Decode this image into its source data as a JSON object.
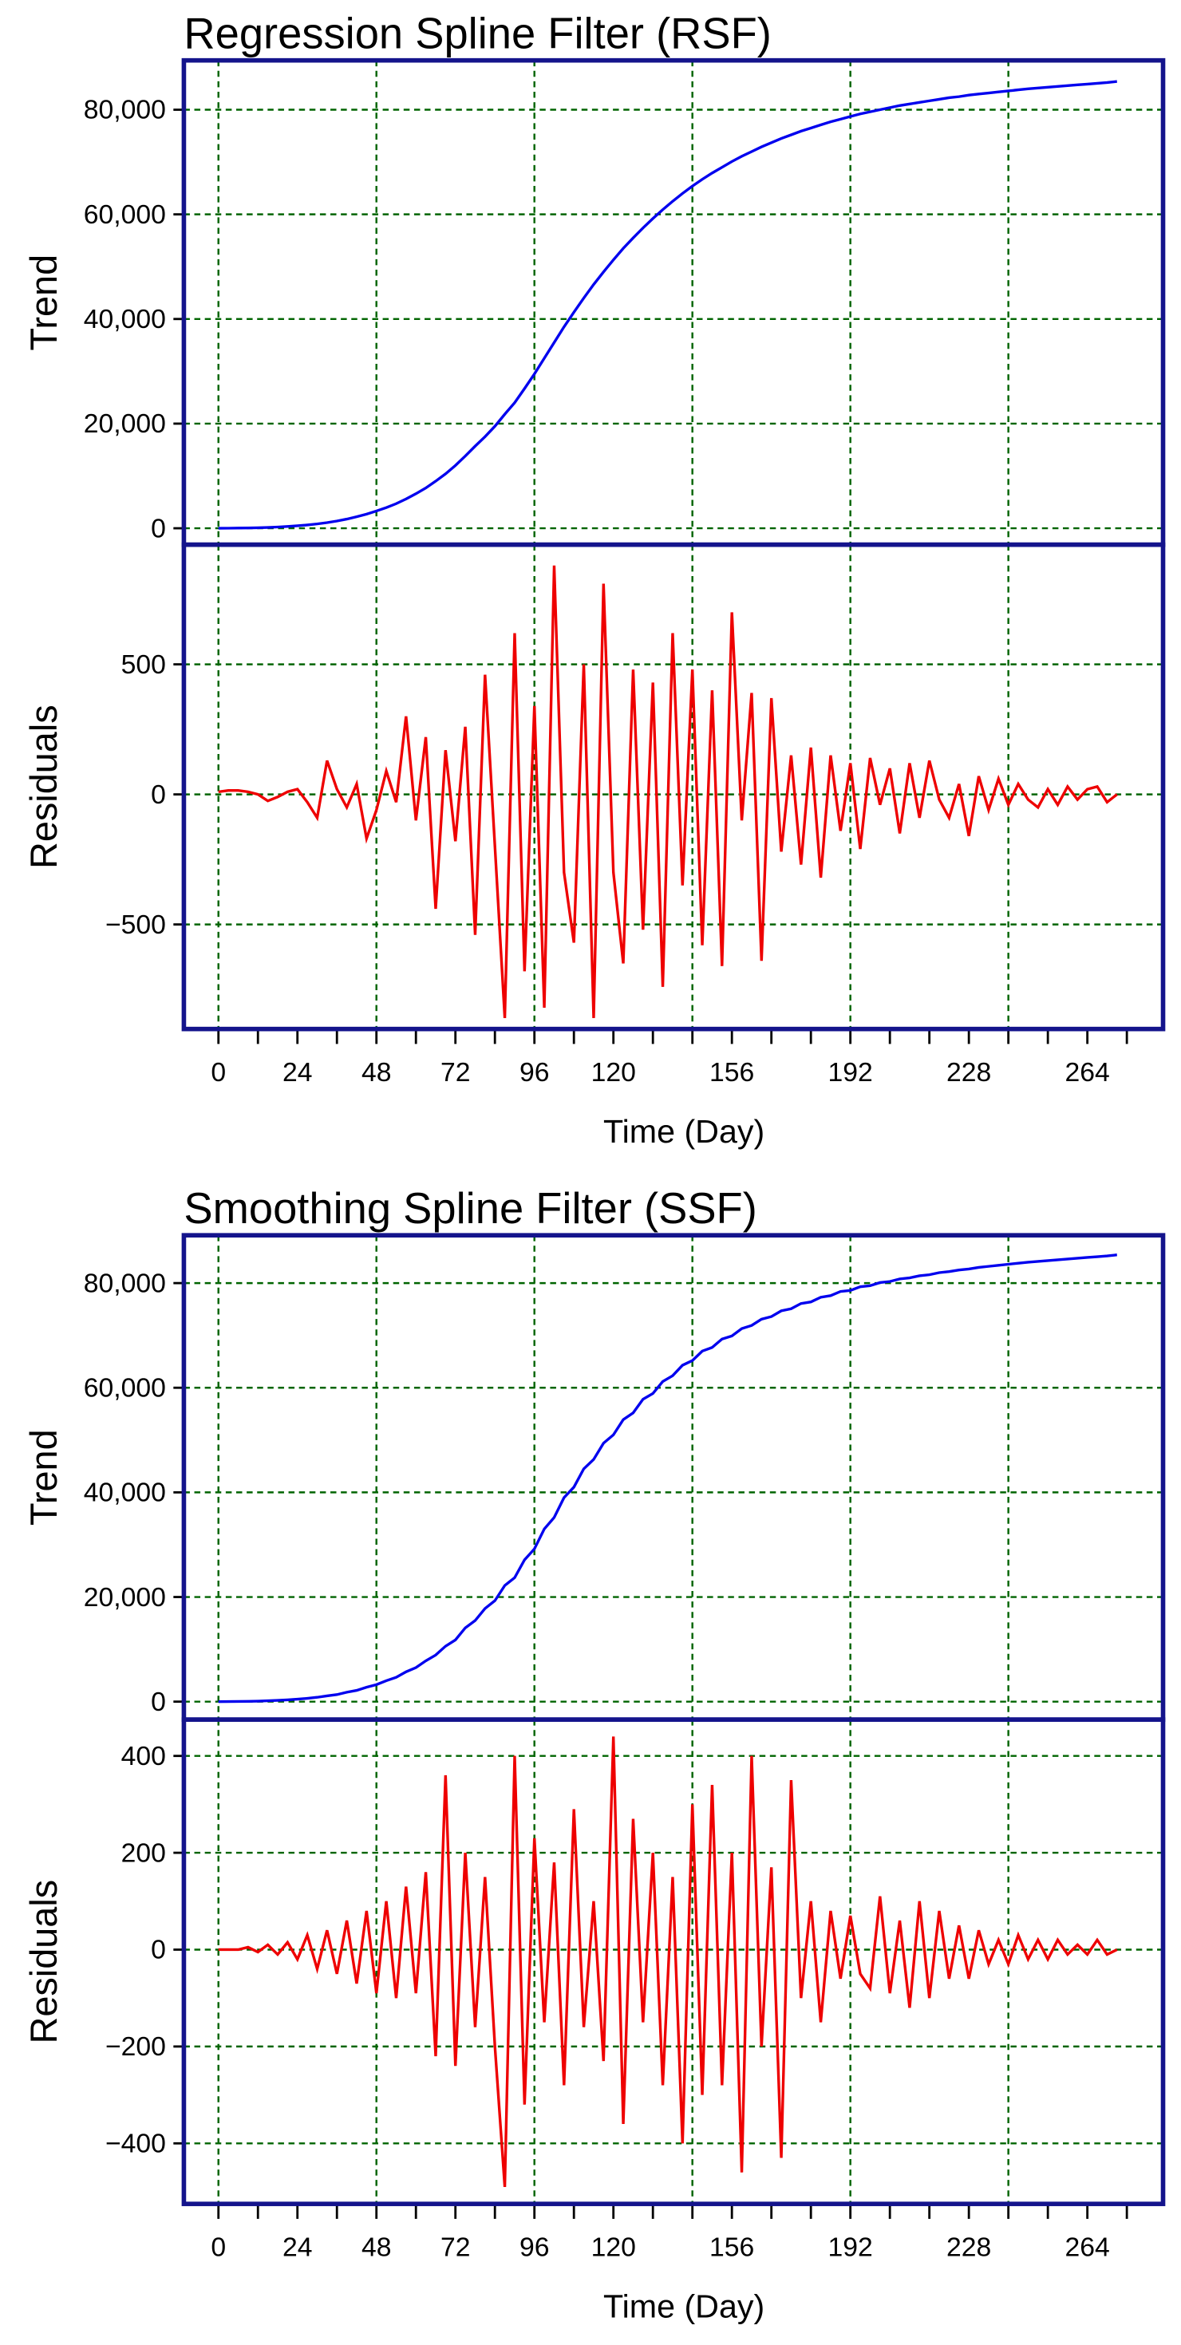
{
  "chart_data": [
    {
      "type": "line",
      "title": "Regression Spline Filter (RSF)",
      "ylabel": "Trend",
      "xlim": [
        -10.5,
        287
      ],
      "ylim": [
        -3140,
        89430
      ],
      "yticks": [
        0,
        {
          "value": 20000,
          "label": "20,000"
        },
        {
          "value": 40000,
          "label": "40,000"
        },
        {
          "value": 60000,
          "label": "60,000"
        },
        {
          "value": 80000,
          "label": "80,000"
        }
      ],
      "xgrid": [
        0,
        48,
        96,
        144,
        192,
        240
      ],
      "grid": true,
      "x": [
        0,
        3,
        6,
        9,
        12,
        15,
        18,
        21,
        24,
        27,
        30,
        33,
        36,
        39,
        42,
        45,
        48,
        51,
        54,
        57,
        60,
        63,
        66,
        69,
        72,
        75,
        78,
        81,
        84,
        87,
        90,
        93,
        96,
        99,
        102,
        105,
        108,
        111,
        114,
        117,
        120,
        123,
        126,
        129,
        132,
        135,
        138,
        141,
        144,
        147,
        150,
        153,
        156,
        159,
        162,
        165,
        168,
        171,
        174,
        177,
        180,
        183,
        186,
        189,
        192,
        195,
        198,
        201,
        204,
        207,
        210,
        213,
        216,
        219,
        222,
        225,
        228,
        231,
        234,
        237,
        240,
        243,
        246,
        249,
        252,
        255,
        258,
        261,
        264,
        267,
        270,
        273
      ],
      "series": [
        {
          "color": "#0000ee",
          "values": [
            0,
            10,
            30,
            60,
            100,
            160,
            240,
            340,
            470,
            630,
            830,
            1080,
            1380,
            1750,
            2200,
            2700,
            3300,
            3950,
            4700,
            5600,
            6600,
            7700,
            9000,
            10400,
            12000,
            13800,
            15700,
            17500,
            19500,
            21800,
            24000,
            26700,
            29500,
            32500,
            35500,
            38500,
            41300,
            44000,
            46600,
            49000,
            51300,
            53500,
            55500,
            57400,
            59200,
            60900,
            62500,
            64000,
            65400,
            66700,
            67900,
            69000,
            70100,
            71100,
            72000,
            72900,
            73700,
            74500,
            75200,
            75900,
            76500,
            77100,
            77700,
            78200,
            78700,
            79200,
            79600,
            80000,
            80400,
            80800,
            81100,
            81400,
            81700,
            82000,
            82300,
            82500,
            82800,
            83000,
            83200,
            83400,
            83600,
            83800,
            84000,
            84150,
            84300,
            84450,
            84600,
            84750,
            84900,
            85050,
            85200,
            85400
          ]
        }
      ]
    },
    {
      "type": "line",
      "ylabel": "Residuals",
      "xlabel": "Time (Day)",
      "xlim": [
        -10.5,
        287
      ],
      "ylim": [
        -902,
        960
      ],
      "yticks": [
        {
          "value": -500,
          "label": "−500"
        },
        0,
        500
      ],
      "xticks": [
        0,
        24,
        48,
        72,
        96,
        120,
        156,
        192,
        228,
        264
      ],
      "xminorticks": [
        0,
        12,
        24,
        36,
        48,
        60,
        72,
        84,
        96,
        108,
        120,
        132,
        144,
        156,
        168,
        180,
        192,
        204,
        216,
        228,
        240,
        252,
        264,
        276
      ],
      "xgrid": [
        0,
        48,
        96,
        144,
        192,
        240
      ],
      "grid": true,
      "x": [
        0,
        3,
        6,
        9,
        12,
        15,
        18,
        21,
        24,
        27,
        30,
        33,
        36,
        39,
        42,
        45,
        48,
        51,
        54,
        57,
        60,
        63,
        66,
        69,
        72,
        75,
        78,
        81,
        84,
        87,
        90,
        93,
        96,
        99,
        102,
        105,
        108,
        111,
        114,
        117,
        120,
        123,
        126,
        129,
        132,
        135,
        138,
        141,
        144,
        147,
        150,
        153,
        156,
        159,
        162,
        165,
        168,
        171,
        174,
        177,
        180,
        183,
        186,
        189,
        192,
        195,
        198,
        201,
        204,
        207,
        210,
        213,
        216,
        219,
        222,
        225,
        228,
        231,
        234,
        237,
        240,
        243,
        246,
        249,
        252,
        255,
        258,
        261,
        264,
        267,
        270,
        273
      ],
      "series": [
        {
          "color": "#ee0000",
          "values": [
            10,
            15,
            15,
            10,
            0,
            -25,
            -10,
            10,
            20,
            -30,
            -90,
            130,
            20,
            -50,
            40,
            -170,
            -60,
            90,
            -30,
            300,
            -100,
            220,
            -440,
            170,
            -180,
            260,
            -540,
            460,
            -200,
            -860,
            620,
            -680,
            340,
            -820,
            880,
            -300,
            -570,
            500,
            -860,
            810,
            -300,
            -650,
            480,
            -520,
            430,
            -740,
            620,
            -350,
            480,
            -580,
            400,
            -660,
            700,
            -100,
            390,
            -640,
            370,
            -220,
            150,
            -270,
            180,
            -320,
            150,
            -140,
            120,
            -210,
            140,
            -40,
            100,
            -150,
            120,
            -90,
            130,
            -20,
            -90,
            40,
            -160,
            70,
            -60,
            60,
            -40,
            40,
            -20,
            -50,
            20,
            -40,
            30,
            -20,
            20,
            30,
            -30,
            0
          ]
        }
      ]
    },
    {
      "type": "line",
      "title": "Smoothing Spline Filter (SSF)",
      "ylabel": "Trend",
      "xlim": [
        -10.5,
        287
      ],
      "ylim": [
        -3430,
        89140
      ],
      "yticks": [
        0,
        {
          "value": 20000,
          "label": "20,000"
        },
        {
          "value": 40000,
          "label": "40,000"
        },
        {
          "value": 60000,
          "label": "60,000"
        },
        {
          "value": 80000,
          "label": "80,000"
        }
      ],
      "xgrid": [
        0,
        48,
        96,
        144,
        192,
        240
      ],
      "grid": true,
      "x": [
        0,
        3,
        6,
        9,
        12,
        15,
        18,
        21,
        24,
        27,
        30,
        33,
        36,
        39,
        42,
        45,
        48,
        51,
        54,
        57,
        60,
        63,
        66,
        69,
        72,
        75,
        78,
        81,
        84,
        87,
        90,
        93,
        96,
        99,
        102,
        105,
        108,
        111,
        114,
        117,
        120,
        123,
        126,
        129,
        132,
        135,
        138,
        141,
        144,
        147,
        150,
        153,
        156,
        159,
        162,
        165,
        168,
        171,
        174,
        177,
        180,
        183,
        186,
        189,
        192,
        195,
        198,
        201,
        204,
        207,
        210,
        213,
        216,
        219,
        222,
        225,
        228,
        231,
        234,
        237,
        240,
        243,
        246,
        249,
        252,
        255,
        258,
        261,
        264,
        267,
        270,
        273
      ],
      "series": [
        {
          "color": "#0000ee",
          "values": [
            0,
            10,
            30,
            60,
            100,
            160,
            240,
            340,
            470,
            630,
            830,
            1100,
            1350,
            1800,
            2150,
            2750,
            3250,
            4000,
            4650,
            5700,
            6500,
            7800,
            8900,
            10600,
            11800,
            14100,
            15500,
            17800,
            19300,
            22200,
            23700,
            27100,
            29200,
            33000,
            35200,
            39000,
            41000,
            44500,
            46300,
            49400,
            51000,
            53900,
            55200,
            57800,
            58900,
            61200,
            62300,
            64300,
            65200,
            67000,
            67700,
            69300,
            69900,
            71300,
            71900,
            73100,
            73600,
            74700,
            75100,
            76100,
            76400,
            77300,
            77600,
            78400,
            78600,
            79300,
            79500,
            80100,
            80300,
            80800,
            81000,
            81400,
            81600,
            82000,
            82200,
            82500,
            82700,
            83000,
            83200,
            83400,
            83600,
            83800,
            84000,
            84150,
            84300,
            84450,
            84600,
            84750,
            84900,
            85050,
            85200,
            85400
          ]
        }
      ]
    },
    {
      "type": "line",
      "ylabel": "Residuals",
      "xlabel": "Time (Day)",
      "xlim": [
        -10.5,
        287
      ],
      "ylim": [
        -525,
        475
      ],
      "yticks": [
        {
          "value": -400,
          "label": "−400"
        },
        {
          "value": -200,
          "label": "−200"
        },
        0,
        200,
        400
      ],
      "xticks": [
        0,
        24,
        48,
        72,
        96,
        120,
        156,
        192,
        228,
        264
      ],
      "xminorticks": [
        0,
        12,
        24,
        36,
        48,
        60,
        72,
        84,
        96,
        108,
        120,
        132,
        144,
        156,
        168,
        180,
        192,
        204,
        216,
        228,
        240,
        252,
        264,
        276
      ],
      "xgrid": [
        0,
        48,
        96,
        144,
        192,
        240
      ],
      "grid": true,
      "x": [
        0,
        3,
        6,
        9,
        12,
        15,
        18,
        21,
        24,
        27,
        30,
        33,
        36,
        39,
        42,
        45,
        48,
        51,
        54,
        57,
        60,
        63,
        66,
        69,
        72,
        75,
        78,
        81,
        84,
        87,
        90,
        93,
        96,
        99,
        102,
        105,
        108,
        111,
        114,
        117,
        120,
        123,
        126,
        129,
        132,
        135,
        138,
        141,
        144,
        147,
        150,
        153,
        156,
        159,
        162,
        165,
        168,
        171,
        174,
        177,
        180,
        183,
        186,
        189,
        192,
        195,
        198,
        201,
        204,
        207,
        210,
        213,
        216,
        219,
        222,
        225,
        228,
        231,
        234,
        237,
        240,
        243,
        246,
        249,
        252,
        255,
        258,
        261,
        264,
        267,
        270,
        273
      ],
      "series": [
        {
          "color": "#ee0000",
          "values": [
            0,
            0,
            0,
            5,
            -5,
            10,
            -10,
            15,
            -20,
            30,
            -40,
            40,
            -50,
            60,
            -70,
            80,
            -90,
            100,
            -100,
            130,
            -90,
            160,
            -220,
            360,
            -240,
            200,
            -160,
            150,
            -200,
            -490,
            400,
            -320,
            230,
            -150,
            180,
            -280,
            290,
            -160,
            100,
            -230,
            440,
            -360,
            270,
            -150,
            200,
            -280,
            150,
            -400,
            300,
            -300,
            340,
            -280,
            200,
            -460,
            400,
            -200,
            170,
            -430,
            350,
            -100,
            100,
            -150,
            80,
            -60,
            70,
            -50,
            -80,
            110,
            -90,
            60,
            -120,
            100,
            -100,
            80,
            -60,
            50,
            -60,
            40,
            -30,
            20,
            -30,
            30,
            -20,
            20,
            -20,
            20,
            -10,
            10,
            -10,
            20,
            -10,
            0
          ]
        }
      ]
    }
  ]
}
